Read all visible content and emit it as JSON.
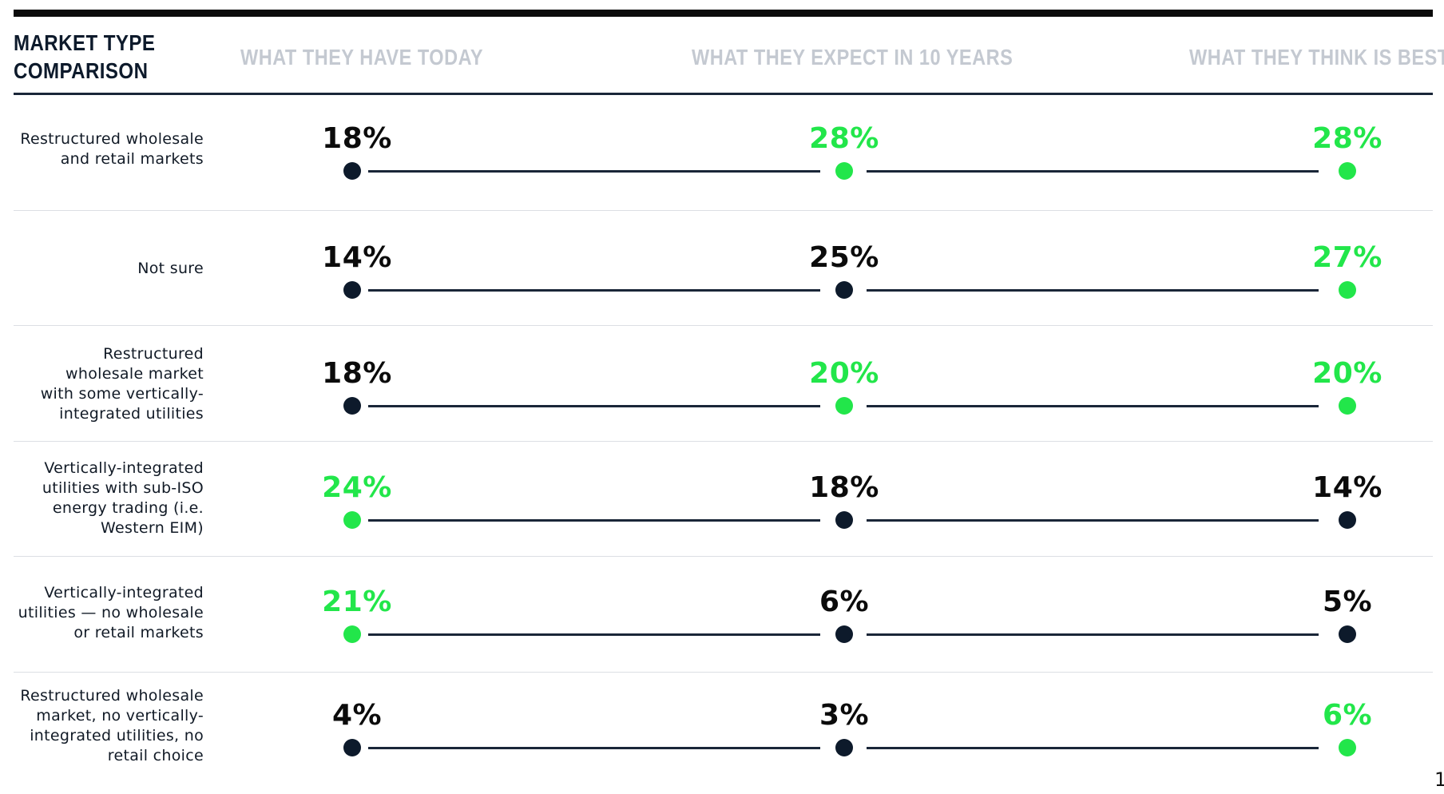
{
  "title_lines": [
    "MARKET TYPE",
    "COMPARISON"
  ],
  "page_number": "1",
  "colors": {
    "highlight": "#22e64a",
    "dark": "#0d1a2b",
    "header_gray": "#c4c9d1",
    "connector": "#1a2638"
  },
  "chart_data": {
    "type": "dot-line comparison",
    "columns": [
      "WHAT THEY HAVE TODAY",
      "WHAT THEY EXPECT IN 10 YEARS",
      "WHAT THEY THINK IS BEST"
    ],
    "rows": [
      {
        "label": [
          "Restructured wholesale",
          "and retail markets"
        ],
        "values": [
          18,
          28,
          28
        ],
        "display": [
          "18%",
          "28%",
          "28%"
        ],
        "highlight": [
          false,
          true,
          true
        ]
      },
      {
        "label": [
          "Not sure"
        ],
        "values": [
          14,
          25,
          27
        ],
        "display": [
          "14%",
          "25%",
          "27%"
        ],
        "highlight": [
          false,
          false,
          true
        ]
      },
      {
        "label": [
          "Restructured",
          "wholesale market",
          "with some vertically-",
          "integrated utilities"
        ],
        "values": [
          18,
          20,
          20
        ],
        "display": [
          "18%",
          "20%",
          "20%"
        ],
        "highlight": [
          false,
          true,
          true
        ]
      },
      {
        "label": [
          "Vertically-integrated",
          "utilities with sub-ISO",
          "energy trading (i.e.",
          "Western EIM)"
        ],
        "values": [
          24,
          18,
          14
        ],
        "display": [
          "24%",
          "18%",
          "14%"
        ],
        "highlight": [
          true,
          false,
          false
        ]
      },
      {
        "label": [
          "Vertically-integrated",
          "utilities — no wholesale",
          "or retail markets"
        ],
        "values": [
          21,
          6,
          5
        ],
        "display": [
          "21%",
          "6%",
          "5%"
        ],
        "highlight": [
          true,
          false,
          false
        ]
      },
      {
        "label": [
          "Restructured wholesale",
          "market, no vertically-",
          "integrated utilities, no",
          "retail choice"
        ],
        "values": [
          4,
          3,
          6
        ],
        "display": [
          "4%",
          "3%",
          "6%"
        ],
        "highlight": [
          false,
          false,
          true
        ]
      }
    ]
  }
}
